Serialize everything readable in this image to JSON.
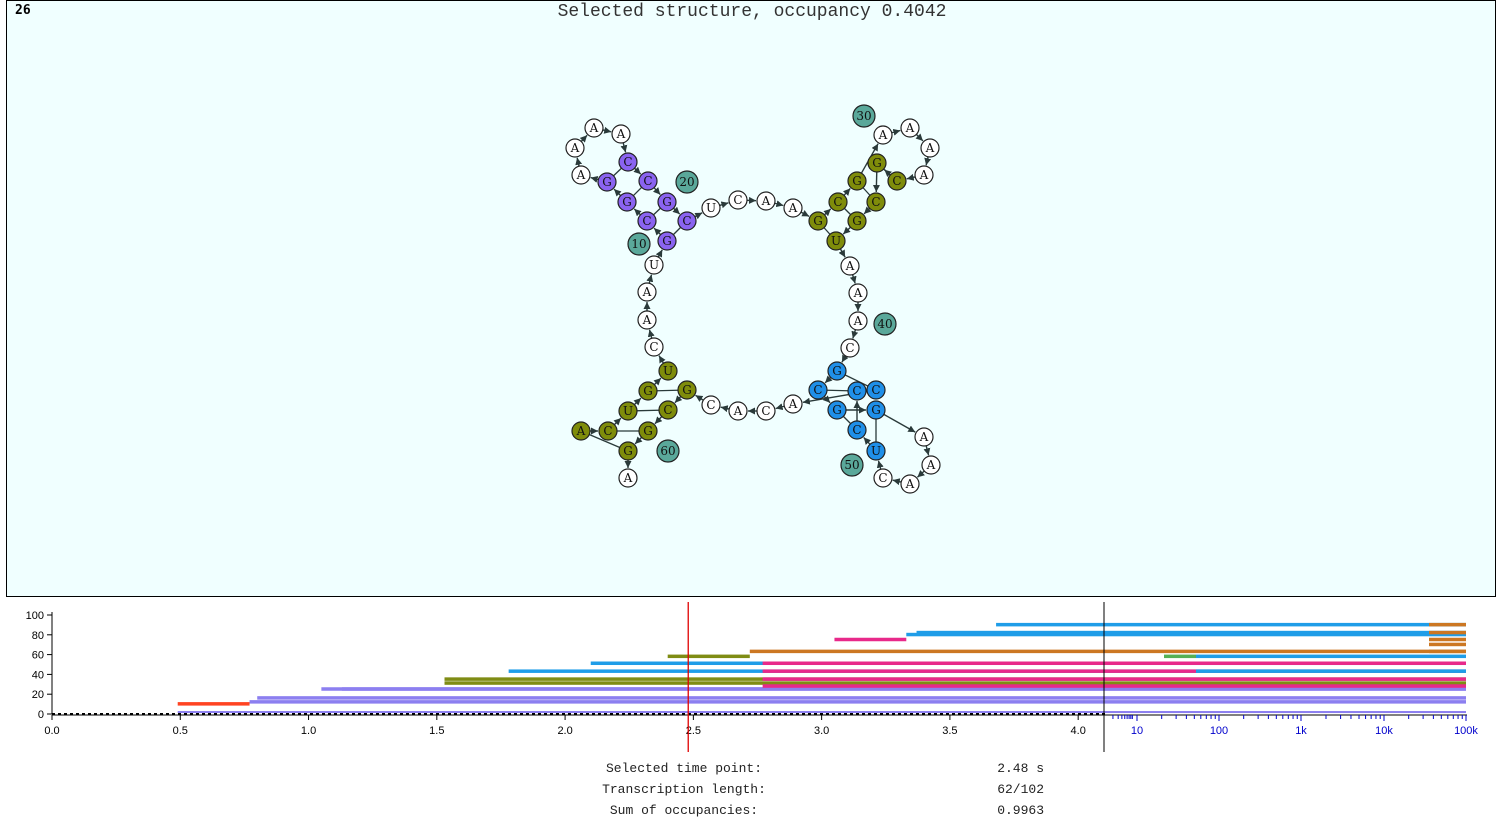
{
  "frame": {
    "number": "26"
  },
  "title": "Selected structure, occupancy 0.4042",
  "colors": {
    "panel_bg": "#f0ffff",
    "violet": "#8a63f0",
    "olive": "#7f8c0a",
    "blue": "#1f8fe8",
    "number_teal": "#5aa89a",
    "white": "#ffffff",
    "marker_red": "#e00000",
    "log_axis_blue": "#0000cc"
  },
  "structure": {
    "nucleotides": [
      {
        "n": 1,
        "b": "A",
        "c": "olive"
      },
      {
        "n": 2,
        "b": "C",
        "c": "olive"
      },
      {
        "n": 3,
        "b": "U",
        "c": "olive"
      },
      {
        "n": 4,
        "b": "G",
        "c": "olive"
      },
      {
        "n": 5,
        "b": "U",
        "c": "olive"
      },
      {
        "n": 6,
        "b": "C",
        "c": "white"
      },
      {
        "n": 7,
        "b": "A",
        "c": "white"
      },
      {
        "n": 8,
        "b": "A",
        "c": "white"
      },
      {
        "n": 9,
        "b": "U",
        "c": "white"
      },
      {
        "n": 10,
        "b": "G",
        "c": "violet"
      },
      {
        "n": 11,
        "b": "C",
        "c": "violet"
      },
      {
        "n": 12,
        "b": "G",
        "c": "violet"
      },
      {
        "n": 13,
        "b": "G",
        "c": "violet"
      },
      {
        "n": 14,
        "b": "A",
        "c": "white"
      },
      {
        "n": 15,
        "b": "A",
        "c": "white"
      },
      {
        "n": 16,
        "b": "A",
        "c": "white"
      },
      {
        "n": 17,
        "b": "A",
        "c": "white"
      },
      {
        "n": 18,
        "b": "C",
        "c": "violet"
      },
      {
        "n": 19,
        "b": "C",
        "c": "violet"
      },
      {
        "n": 20,
        "b": "G",
        "c": "violet"
      },
      {
        "n": 21,
        "b": "C",
        "c": "violet"
      },
      {
        "n": 22,
        "b": "U",
        "c": "white"
      },
      {
        "n": 23,
        "b": "C",
        "c": "white"
      },
      {
        "n": 24,
        "b": "A",
        "c": "white"
      },
      {
        "n": 25,
        "b": "A",
        "c": "white"
      },
      {
        "n": 26,
        "b": "G",
        "c": "olive"
      },
      {
        "n": 27,
        "b": "C",
        "c": "olive"
      },
      {
        "n": 28,
        "b": "G",
        "c": "olive"
      },
      {
        "n": 29,
        "b": "A",
        "c": "white"
      },
      {
        "n": 30,
        "b": "A",
        "c": "white"
      },
      {
        "n": 31,
        "b": "A",
        "c": "white"
      },
      {
        "n": 32,
        "b": "A",
        "c": "white"
      },
      {
        "n": 33,
        "b": "C",
        "c": "olive"
      },
      {
        "n": 34,
        "b": "G",
        "c": "olive"
      },
      {
        "n": 35,
        "b": "C",
        "c": "olive"
      },
      {
        "n": 36,
        "b": "G",
        "c": "olive"
      },
      {
        "n": 37,
        "b": "U",
        "c": "olive"
      },
      {
        "n": 38,
        "b": "A",
        "c": "white"
      },
      {
        "n": 39,
        "b": "A",
        "c": "white"
      },
      {
        "n": 40,
        "b": "A",
        "c": "white"
      },
      {
        "n": 41,
        "b": "C",
        "c": "white"
      },
      {
        "n": 42,
        "b": "G",
        "c": "blue"
      },
      {
        "n": 43,
        "b": "C",
        "c": "blue"
      },
      {
        "n": 44,
        "b": "G",
        "c": "blue"
      },
      {
        "n": 45,
        "b": "G",
        "c": "blue"
      },
      {
        "n": 46,
        "b": "A",
        "c": "white"
      },
      {
        "n": 47,
        "b": "A",
        "c": "white"
      },
      {
        "n": 48,
        "b": "A",
        "c": "white"
      },
      {
        "n": 49,
        "b": "C",
        "c": "white"
      },
      {
        "n": 50,
        "b": "U",
        "c": "blue"
      },
      {
        "n": 51,
        "b": "C",
        "c": "blue"
      },
      {
        "n": 52,
        "b": "C",
        "c": "blue"
      },
      {
        "n": 53,
        "b": "C",
        "c": "blue"
      },
      {
        "n": 54,
        "b": "A",
        "c": "white"
      },
      {
        "n": 55,
        "b": "C",
        "c": "white"
      },
      {
        "n": 56,
        "b": "A",
        "c": "white"
      },
      {
        "n": 57,
        "b": "C",
        "c": "white"
      },
      {
        "n": 58,
        "b": "G",
        "c": "olive"
      },
      {
        "n": 59,
        "b": "C",
        "c": "olive"
      },
      {
        "n": 60,
        "b": "G",
        "c": "olive"
      },
      {
        "n": 61,
        "b": "G",
        "c": "olive"
      },
      {
        "n": 62,
        "b": "A",
        "c": "white"
      }
    ],
    "number_labels": [
      "10",
      "20",
      "30",
      "40",
      "50",
      "60"
    ],
    "pairs": [
      [
        1,
        61
      ],
      [
        2,
        60
      ],
      [
        3,
        59
      ],
      [
        4,
        58
      ],
      [
        10,
        21
      ],
      [
        11,
        20
      ],
      [
        12,
        19
      ],
      [
        13,
        18
      ],
      [
        26,
        37
      ],
      [
        27,
        36
      ],
      [
        28,
        35
      ],
      [
        33,
        34
      ],
      [
        42,
        53
      ],
      [
        43,
        52
      ],
      [
        44,
        51
      ],
      [
        45,
        50
      ]
    ]
  },
  "chart_data": {
    "type": "area",
    "linear_axis": {
      "range": [
        0.0,
        4.05
      ],
      "tick_labels": [
        "0.0",
        "0.5",
        "1.0",
        "1.5",
        "2.0",
        "2.5",
        "3.0",
        "3.5",
        "4.0"
      ],
      "scale": "linear"
    },
    "log_axis": {
      "tick_labels": [
        "10",
        "100",
        "1k",
        "10k",
        "100k"
      ],
      "scale": "log"
    },
    "y_axis": {
      "range": [
        0,
        100
      ],
      "tick_labels": [
        "0",
        "20",
        "40",
        "60",
        "80",
        "100"
      ]
    },
    "selected_time": 2.48,
    "series_colors": [
      "#8c7ff0",
      "#7f8c14",
      "#1f9de8",
      "#e8298a",
      "#cc7722",
      "#ff4422",
      "#55b055"
    ]
  },
  "info": {
    "time_label": "Selected time point:",
    "time_value": "2.48 s",
    "length_label": "Transcription length:",
    "length_value": "62/102",
    "sum_label": "Sum of occupancies:",
    "sum_value": "0.9963"
  }
}
